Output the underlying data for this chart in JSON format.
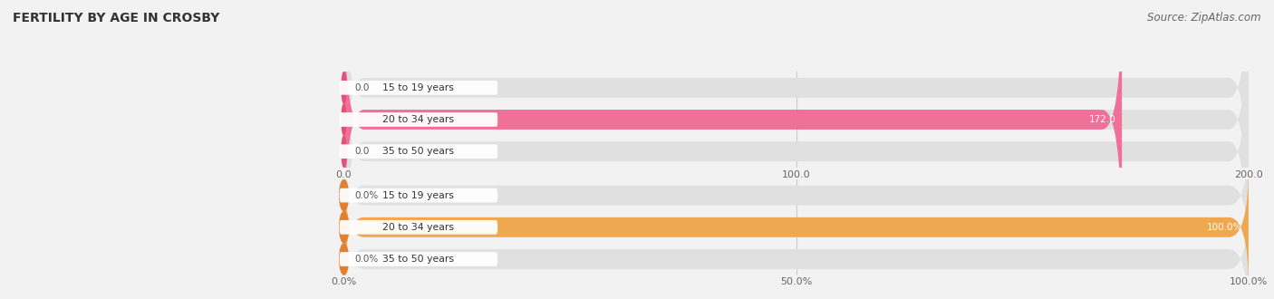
{
  "title": "FERTILITY BY AGE IN CROSBY",
  "source": "Source: ZipAtlas.com",
  "background_color": "#f2f2f2",
  "top_chart": {
    "categories": [
      "15 to 19 years",
      "20 to 34 years",
      "35 to 50 years"
    ],
    "values": [
      0.0,
      172.0,
      0.0
    ],
    "max_value": 200.0,
    "tick_values": [
      0.0,
      100.0,
      200.0
    ],
    "tick_labels": [
      "0.0",
      "100.0",
      "200.0"
    ],
    "bar_color": "#f07098",
    "bar_bg_color": "#e0e0e0",
    "label_color_on_bar": "#ffffff",
    "label_color_off_bar": "#555555",
    "circle_color": "#e05078"
  },
  "bottom_chart": {
    "categories": [
      "15 to 19 years",
      "20 to 34 years",
      "35 to 50 years"
    ],
    "values": [
      0.0,
      100.0,
      0.0
    ],
    "max_value": 100.0,
    "tick_values": [
      0.0,
      50.0,
      100.0
    ],
    "tick_labels": [
      "0.0%",
      "50.0%",
      "100.0%"
    ],
    "bar_color": "#f0a850",
    "bar_bg_color": "#e0e0e0",
    "label_color_on_bar": "#ffffff",
    "label_color_off_bar": "#555555",
    "circle_color": "#e08030"
  }
}
